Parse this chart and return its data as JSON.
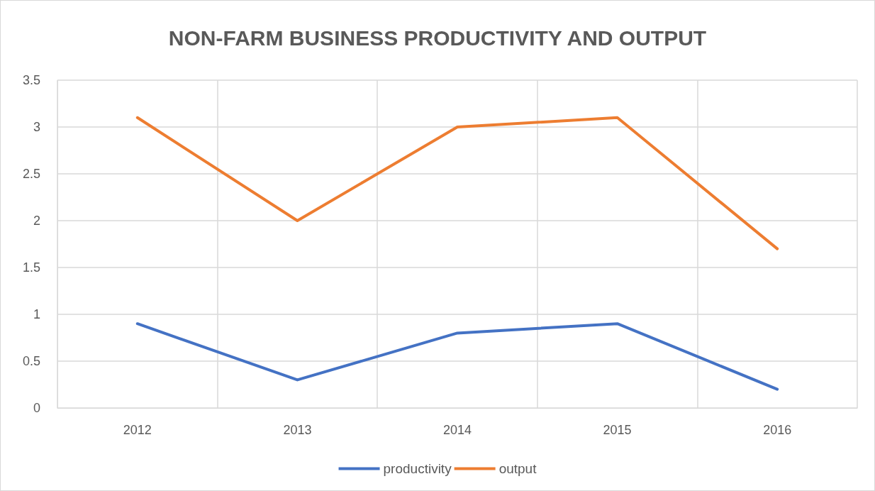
{
  "chart_data": {
    "type": "line",
    "title": "NON-FARM BUSINESS PRODUCTIVITY AND OUTPUT",
    "categories": [
      "2012",
      "2013",
      "2014",
      "2015",
      "2016"
    ],
    "series": [
      {
        "name": "productivity",
        "color": "#4472c4",
        "values": [
          0.9,
          0.3,
          0.8,
          0.9,
          0.2
        ]
      },
      {
        "name": "output",
        "color": "#ed7d31",
        "values": [
          3.1,
          2.0,
          3.0,
          3.1,
          1.7
        ]
      }
    ],
    "ylim": [
      0,
      3.5
    ],
    "yticks": [
      0,
      0.5,
      1,
      1.5,
      2,
      2.5,
      3,
      3.5
    ],
    "grid": true,
    "legend": "bottom",
    "marker": "none",
    "line_style": "solid"
  }
}
